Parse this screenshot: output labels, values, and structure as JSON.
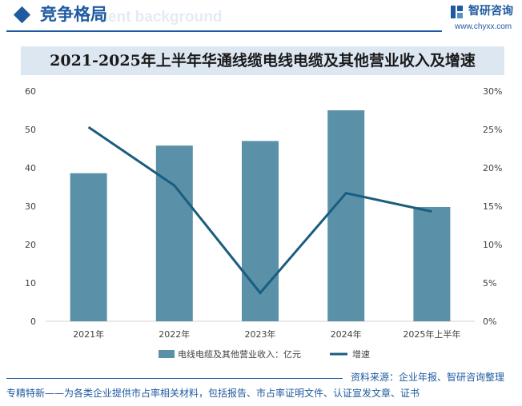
{
  "header": {
    "section_title": "竞争格局",
    "section_title_bg": "ment background",
    "brand_name": "智研咨询",
    "brand_url": "www.chyxx.com"
  },
  "chart_data": {
    "type": "bar+line",
    "title": "2021-2025年上半年华通线缆电线电缆及其他营业收入及增速",
    "categories": [
      "2021年",
      "2022年",
      "2023年",
      "2024年",
      "2025年上半年"
    ],
    "series": [
      {
        "name": "电线电缆及其他营业收入：亿元",
        "type": "bar",
        "axis": "left",
        "values": [
          38.6,
          45.8,
          47.0,
          55.0,
          29.8
        ],
        "color": "#5b91a8"
      },
      {
        "name": "增速",
        "type": "line",
        "axis": "right",
        "values": [
          25.3,
          17.7,
          3.7,
          16.7,
          14.3
        ],
        "color": "#1a5d7e"
      }
    ],
    "y_left": {
      "min": 0,
      "max": 60,
      "ticks": [
        "0",
        "10",
        "20",
        "30",
        "40",
        "50",
        "60"
      ]
    },
    "y_right": {
      "min": 0,
      "max": 30,
      "ticks": [
        "0%",
        "5%",
        "10%",
        "15%",
        "20%",
        "25%",
        "30%"
      ]
    },
    "grid": false,
    "legend_position": "bottom"
  },
  "footer": {
    "source": "资料来源：企业年报、智研咨询整理",
    "tagline": "专精特新——为各类企业提供市占率相关材料，包括报告、市占率证明文件、认证宣发文章、证书"
  }
}
